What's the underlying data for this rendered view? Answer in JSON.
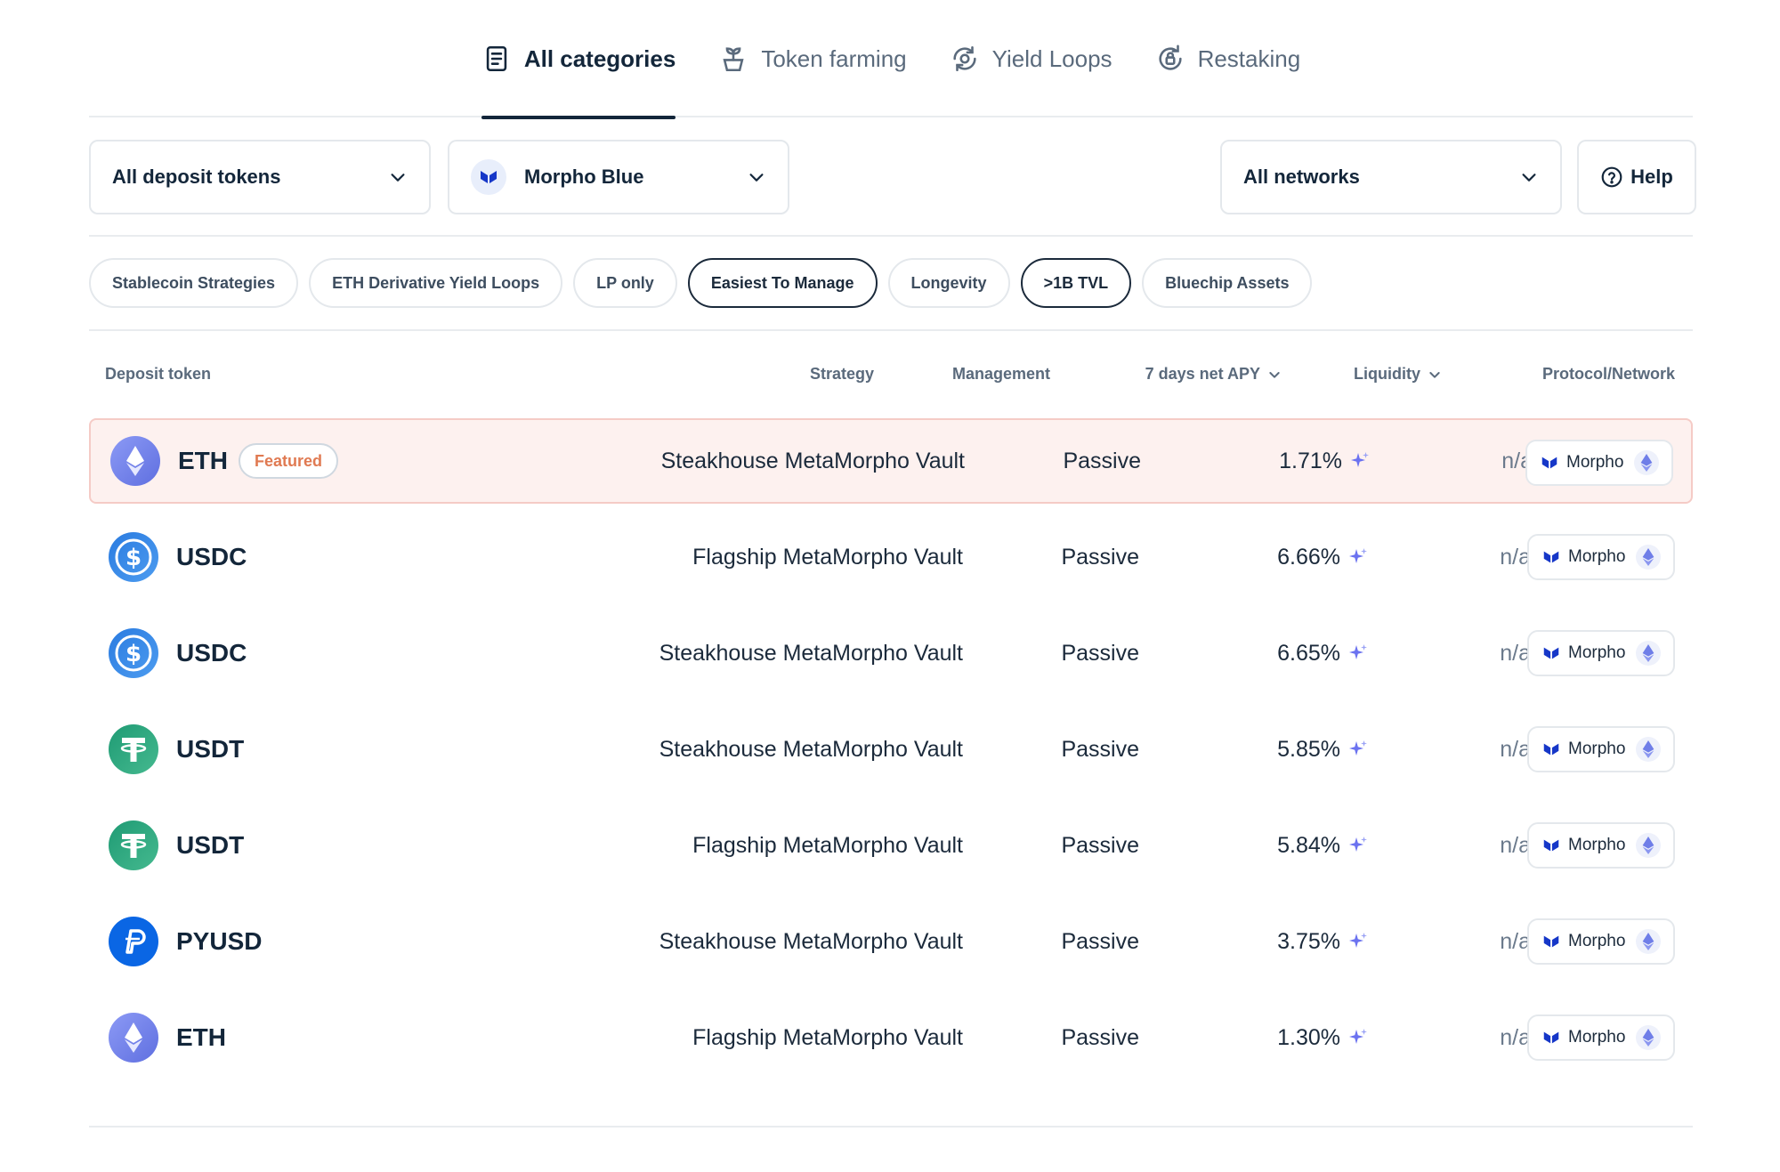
{
  "tabs": [
    {
      "label": "All categories",
      "icon": "document-icon",
      "active": true
    },
    {
      "label": "Token farming",
      "icon": "plant-icon",
      "active": false
    },
    {
      "label": "Yield Loops",
      "icon": "loop-icon",
      "active": false
    },
    {
      "label": "Restaking",
      "icon": "lock-refresh-icon",
      "active": false
    }
  ],
  "filters": {
    "deposit_tokens": "All deposit tokens",
    "protocol": "Morpho Blue",
    "networks": "All networks",
    "help": "Help"
  },
  "chips": [
    {
      "label": "Stablecoin Strategies",
      "selected": false
    },
    {
      "label": "ETH Derivative Yield Loops",
      "selected": false
    },
    {
      "label": "LP only",
      "selected": false
    },
    {
      "label": "Easiest To Manage",
      "selected": true
    },
    {
      "label": "Longevity",
      "selected": false
    },
    {
      "label": ">1B TVL",
      "selected": true
    },
    {
      "label": "Bluechip Assets",
      "selected": false
    }
  ],
  "table": {
    "headers": {
      "deposit_token": "Deposit token",
      "strategy": "Strategy",
      "management": "Management",
      "apy": "7 days net APY",
      "liquidity": "Liquidity",
      "protocol": "Protocol/Network"
    },
    "rows": [
      {
        "token": "ETH",
        "featured": "Featured",
        "strategy": "Steakhouse MetaMorpho Vault",
        "management": "Passive",
        "apy": "1.71%",
        "liquidity": "n/a",
        "protocol": "Morpho"
      },
      {
        "token": "USDC",
        "strategy": "Flagship MetaMorpho Vault",
        "management": "Passive",
        "apy": "6.66%",
        "liquidity": "n/a",
        "protocol": "Morpho"
      },
      {
        "token": "USDC",
        "strategy": "Steakhouse MetaMorpho Vault",
        "management": "Passive",
        "apy": "6.65%",
        "liquidity": "n/a",
        "protocol": "Morpho"
      },
      {
        "token": "USDT",
        "strategy": "Steakhouse MetaMorpho Vault",
        "management": "Passive",
        "apy": "5.85%",
        "liquidity": "n/a",
        "protocol": "Morpho"
      },
      {
        "token": "USDT",
        "strategy": "Flagship MetaMorpho Vault",
        "management": "Passive",
        "apy": "5.84%",
        "liquidity": "n/a",
        "protocol": "Morpho"
      },
      {
        "token": "PYUSD",
        "strategy": "Steakhouse MetaMorpho Vault",
        "management": "Passive",
        "apy": "3.75%",
        "liquidity": "n/a",
        "protocol": "Morpho"
      },
      {
        "token": "ETH",
        "strategy": "Flagship MetaMorpho Vault",
        "management": "Passive",
        "apy": "1.30%",
        "liquidity": "n/a",
        "protocol": "Morpho"
      }
    ]
  },
  "colors": {
    "eth": "#6f7ee8",
    "usdc": "#2775ca",
    "usdt": "#26a17b",
    "pyusd": "#0a66e4",
    "featured_bg": "#fdf1ef",
    "accent_dark": "#13263a",
    "sparkle": "#6b72f0"
  }
}
